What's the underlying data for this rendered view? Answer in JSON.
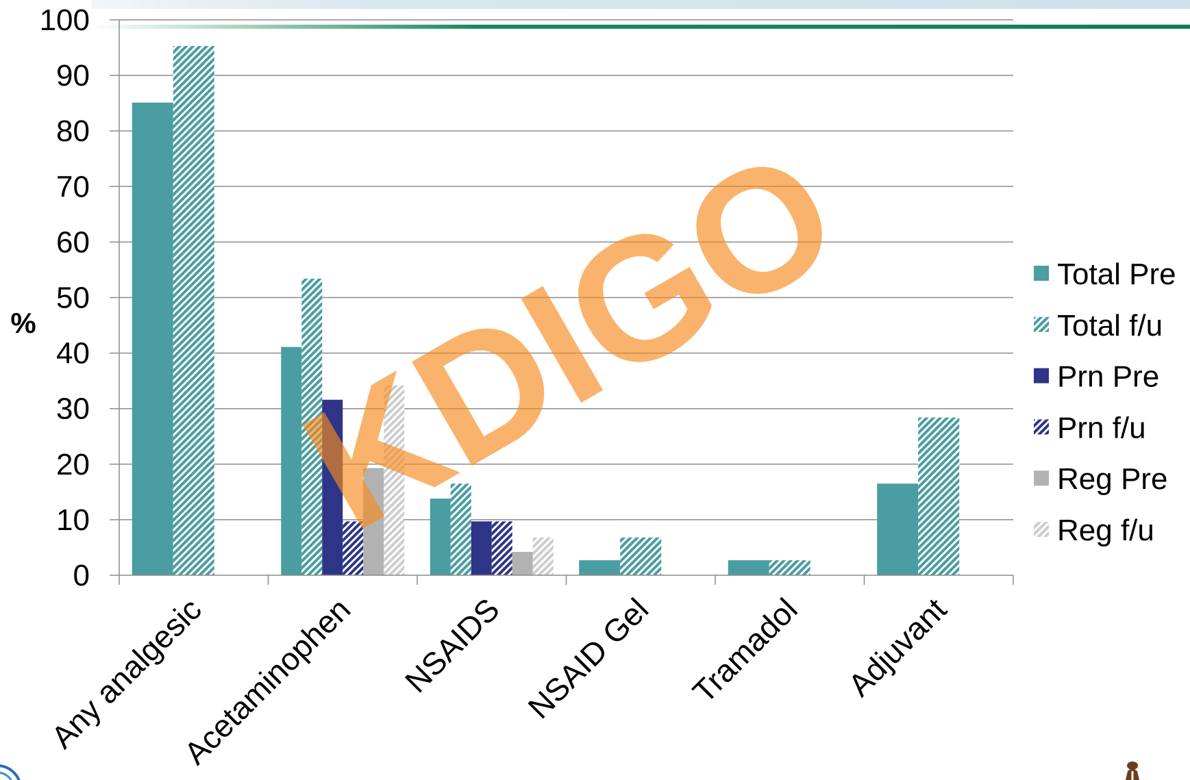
{
  "watermark": "KDIGO",
  "chart_data": {
    "type": "bar",
    "categories": [
      "Any analgesic",
      "Acetaminophen",
      "NSAIDS",
      "NSAID Gel",
      "Tramadol",
      "Adjuvant"
    ],
    "series": [
      {
        "name": "Total Pre",
        "color": "#4a9da1",
        "hatched": false,
        "values": [
          85.1,
          41.1,
          13.8,
          2.7,
          2.7,
          16.5
        ]
      },
      {
        "name": "Total f/u",
        "color": "#4a9da1",
        "hatched": true,
        "values": [
          95.3,
          53.4,
          16.5,
          6.8,
          2.7,
          28.4
        ]
      },
      {
        "name": "Prn Pre",
        "color": "#2e3586",
        "hatched": false,
        "values": [
          null,
          31.6,
          9.7,
          null,
          null,
          null
        ]
      },
      {
        "name": "Prn f/u",
        "color": "#2e3586",
        "hatched": true,
        "values": [
          null,
          9.7,
          9.7,
          null,
          null,
          null
        ]
      },
      {
        "name": "Reg Pre",
        "color": "#b2b2b2",
        "hatched": false,
        "values": [
          null,
          19.3,
          4.2,
          null,
          null,
          null
        ]
      },
      {
        "name": "Reg f/u",
        "color": "#cdcdcd",
        "hatched": true,
        "values": [
          null,
          34.2,
          6.8,
          null,
          null,
          null
        ]
      }
    ],
    "title": "",
    "xlabel": "",
    "ylabel": "%",
    "ylim": [
      0,
      100
    ],
    "yticks": [
      0,
      10,
      20,
      30,
      40,
      50,
      60,
      70,
      80,
      90,
      100
    ],
    "grid": true,
    "legend": "right",
    "colors": {
      "gridline": "#8c8c8c",
      "axis": "#8c8c8c",
      "header_band": "#cfe0ea",
      "header_line": "#0f7f55"
    }
  }
}
